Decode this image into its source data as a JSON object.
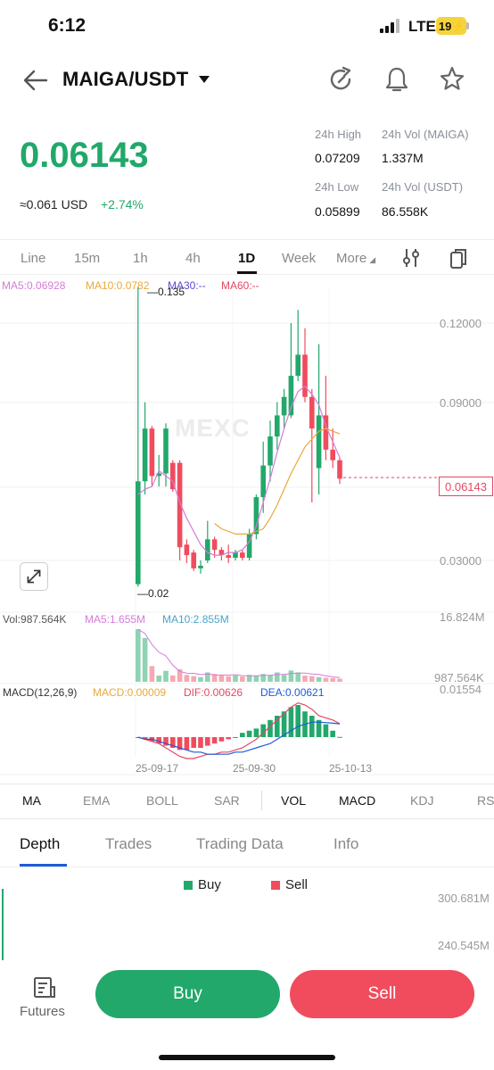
{
  "status_bar": {
    "time": "6:12",
    "network": "LTE",
    "battery": "19"
  },
  "header": {
    "pair": "MAIGA/USDT",
    "icons": [
      "back-arrow-icon",
      "chevron-down-icon",
      "refresh-icon",
      "bell-icon",
      "star-icon"
    ]
  },
  "ticker": {
    "price": "0.06143",
    "usd_approx": "≈0.061",
    "usd_unit": "USD",
    "change": "+2.74%",
    "stats": {
      "high_label": "24h High",
      "high_value": "0.07209",
      "vol_base_label": "24h Vol (MAIGA)",
      "vol_base_value": "1.337M",
      "low_label": "24h Low",
      "low_value": "0.05899",
      "vol_quote_label": "24h Vol  (USDT)",
      "vol_quote_value": "86.558K"
    }
  },
  "periods": [
    "Line",
    "15m",
    "1h",
    "4h",
    "1D",
    "Week",
    "More"
  ],
  "active_period": "1D",
  "ma_legend": {
    "ma5": "MA5:0.06928",
    "ma10": "MA10:0.0782",
    "ma30": "MA30:--",
    "ma60": "MA60:--"
  },
  "price_axis": [
    "0.12000",
    "0.09000",
    "0.06143",
    "0.03000"
  ],
  "annotations": {
    "max": "0.135",
    "min": "0.02"
  },
  "watermark": "MEXC",
  "volume_legend": {
    "vol": "Vol:987.564K",
    "ma5": "MA5:1.655M",
    "ma10": "MA10:2.855M",
    "max": "16.824M",
    "min": "987.564K"
  },
  "macd_legend": {
    "name": "MACD(12,26,9)",
    "macd": "MACD:0.00009",
    "dif": "DIF:0.00626",
    "dea": "DEA:0.00621",
    "max": "0.01554"
  },
  "dates": [
    "25-09-17",
    "25-09-30",
    "25-10-13"
  ],
  "indicators": [
    "MA",
    "EMA",
    "BOLL",
    "SAR",
    "VOL",
    "MACD",
    "KDJ",
    "RSI"
  ],
  "active_indicators": [
    "MA",
    "VOL",
    "MACD"
  ],
  "detail_tabs": [
    "Depth",
    "Trades",
    "Trading Data",
    "Info"
  ],
  "active_detail_tab": "Depth",
  "depth": {
    "buy_label": "Buy",
    "sell_label": "Sell",
    "axis": [
      "300.681M",
      "240.545M"
    ]
  },
  "bottom": {
    "futures": "Futures",
    "buy": "Buy",
    "sell": "Sell"
  },
  "colors": {
    "up": "#22a86b",
    "down": "#f04c5e",
    "ma5": "#d57bd9",
    "ma10": "#e8a93c",
    "ma30": "#5a4bd0",
    "ma60": "#e34860",
    "dea": "#1d5bd8"
  },
  "chart_data": {
    "type": "candlestick",
    "price_ylim": [
      0.02,
      0.135
    ],
    "price_ticks": [
      0.12,
      0.09,
      0.06143,
      0.03
    ],
    "candles": [
      {
        "o": 0.021,
        "c": 0.06,
        "h": 0.135,
        "l": 0.02
      },
      {
        "o": 0.06,
        "c": 0.08,
        "h": 0.09,
        "l": 0.055
      },
      {
        "o": 0.08,
        "c": 0.062,
        "h": 0.081,
        "l": 0.058
      },
      {
        "o": 0.062,
        "c": 0.063,
        "h": 0.07,
        "l": 0.058
      },
      {
        "o": 0.063,
        "c": 0.08,
        "h": 0.082,
        "l": 0.058
      },
      {
        "o": 0.067,
        "c": 0.057,
        "h": 0.068,
        "l": 0.056
      },
      {
        "o": 0.067,
        "c": 0.035,
        "h": 0.068,
        "l": 0.03
      },
      {
        "o": 0.036,
        "c": 0.032,
        "h": 0.038,
        "l": 0.029
      },
      {
        "o": 0.033,
        "c": 0.027,
        "h": 0.034,
        "l": 0.026
      },
      {
        "o": 0.027,
        "c": 0.028,
        "h": 0.03,
        "l": 0.025
      },
      {
        "o": 0.03,
        "c": 0.038,
        "h": 0.045,
        "l": 0.029
      },
      {
        "o": 0.038,
        "c": 0.034,
        "h": 0.039,
        "l": 0.031
      },
      {
        "o": 0.034,
        "c": 0.032,
        "h": 0.035,
        "l": 0.03
      },
      {
        "o": 0.032,
        "c": 0.031,
        "h": 0.036,
        "l": 0.029
      },
      {
        "o": 0.031,
        "c": 0.033,
        "h": 0.034,
        "l": 0.03
      },
      {
        "o": 0.033,
        "c": 0.031,
        "h": 0.034,
        "l": 0.03
      },
      {
        "o": 0.031,
        "c": 0.04,
        "h": 0.042,
        "l": 0.03
      },
      {
        "o": 0.04,
        "c": 0.054,
        "h": 0.055,
        "l": 0.038
      },
      {
        "o": 0.054,
        "c": 0.066,
        "h": 0.075,
        "l": 0.048
      },
      {
        "o": 0.066,
        "c": 0.077,
        "h": 0.083,
        "l": 0.06
      },
      {
        "o": 0.077,
        "c": 0.085,
        "h": 0.09,
        "l": 0.072
      },
      {
        "o": 0.085,
        "c": 0.092,
        "h": 0.095,
        "l": 0.08
      },
      {
        "o": 0.085,
        "c": 0.1,
        "h": 0.12,
        "l": 0.084
      },
      {
        "o": 0.1,
        "c": 0.108,
        "h": 0.125,
        "l": 0.098
      },
      {
        "o": 0.108,
        "c": 0.092,
        "h": 0.118,
        "l": 0.09
      },
      {
        "o": 0.092,
        "c": 0.08,
        "h": 0.095,
        "l": 0.052
      },
      {
        "o": 0.065,
        "c": 0.085,
        "h": 0.112,
        "l": 0.055
      },
      {
        "o": 0.085,
        "c": 0.072,
        "h": 0.1,
        "l": 0.068
      },
      {
        "o": 0.072,
        "c": 0.068,
        "h": 0.08,
        "l": 0.065
      },
      {
        "o": 0.068,
        "c": 0.061,
        "h": 0.069,
        "l": 0.059
      }
    ],
    "ma5": [
      0.055,
      0.057,
      0.058,
      0.064,
      0.062,
      0.06,
      0.052,
      0.046,
      0.041,
      0.036,
      0.033,
      0.032,
      0.032,
      0.033,
      0.033,
      0.034,
      0.037,
      0.043,
      0.052,
      0.061,
      0.071,
      0.08,
      0.088,
      0.094,
      0.096,
      0.093,
      0.089,
      0.081,
      0.075,
      0.069
    ],
    "ma10": [
      0.044,
      0.042,
      0.041,
      0.04,
      0.04,
      0.04,
      0.041,
      0.042,
      0.046,
      0.051,
      0.057,
      0.063,
      0.068,
      0.073,
      0.076,
      0.079,
      0.08,
      0.079,
      0.078
    ],
    "ma10_start": 11,
    "volume": [
      16.8,
      14.0,
      5.0,
      2.0,
      3.5,
      2.0,
      4.0,
      2.2,
      1.8,
      1.5,
      3.0,
      2.5,
      2.0,
      1.8,
      2.0,
      1.7,
      2.2,
      2.0,
      2.5,
      2.0,
      3.0,
      2.2,
      3.6,
      3.0,
      2.0,
      1.8,
      1.5,
      1.3,
      1.2,
      0.99
    ],
    "volume_ylim": [
      0,
      16.824
    ],
    "macd_hist": [
      0.0,
      -0.001,
      -0.002,
      -0.003,
      -0.004,
      -0.005,
      -0.006,
      -0.006,
      -0.005,
      -0.005,
      -0.004,
      -0.003,
      -0.002,
      -0.001,
      0.0,
      0.002,
      0.003,
      0.004,
      0.006,
      0.008,
      0.01,
      0.012,
      0.014,
      0.015,
      0.012,
      0.01,
      0.008,
      0.006,
      0.003,
      0.0001
    ],
    "dif": [
      0.0,
      -0.001,
      -0.002,
      -0.003,
      -0.005,
      -0.007,
      -0.009,
      -0.01,
      -0.01,
      -0.009,
      -0.008,
      -0.008,
      -0.007,
      -0.007,
      -0.006,
      -0.005,
      -0.003,
      -0.001,
      0.002,
      0.005,
      0.008,
      0.011,
      0.014,
      0.016,
      0.015,
      0.013,
      0.01,
      0.009,
      0.008,
      0.0063
    ],
    "dea": [
      0.0,
      -0.001,
      -0.001,
      -0.002,
      -0.003,
      -0.004,
      -0.005,
      -0.006,
      -0.007,
      -0.007,
      -0.008,
      -0.008,
      -0.008,
      -0.008,
      -0.007,
      -0.007,
      -0.006,
      -0.005,
      -0.004,
      -0.003,
      -0.001,
      0.001,
      0.003,
      0.005,
      0.006,
      0.007,
      0.007,
      0.0068,
      0.0065,
      0.0062
    ],
    "macd_ylim": [
      -0.012,
      0.01554
    ]
  }
}
